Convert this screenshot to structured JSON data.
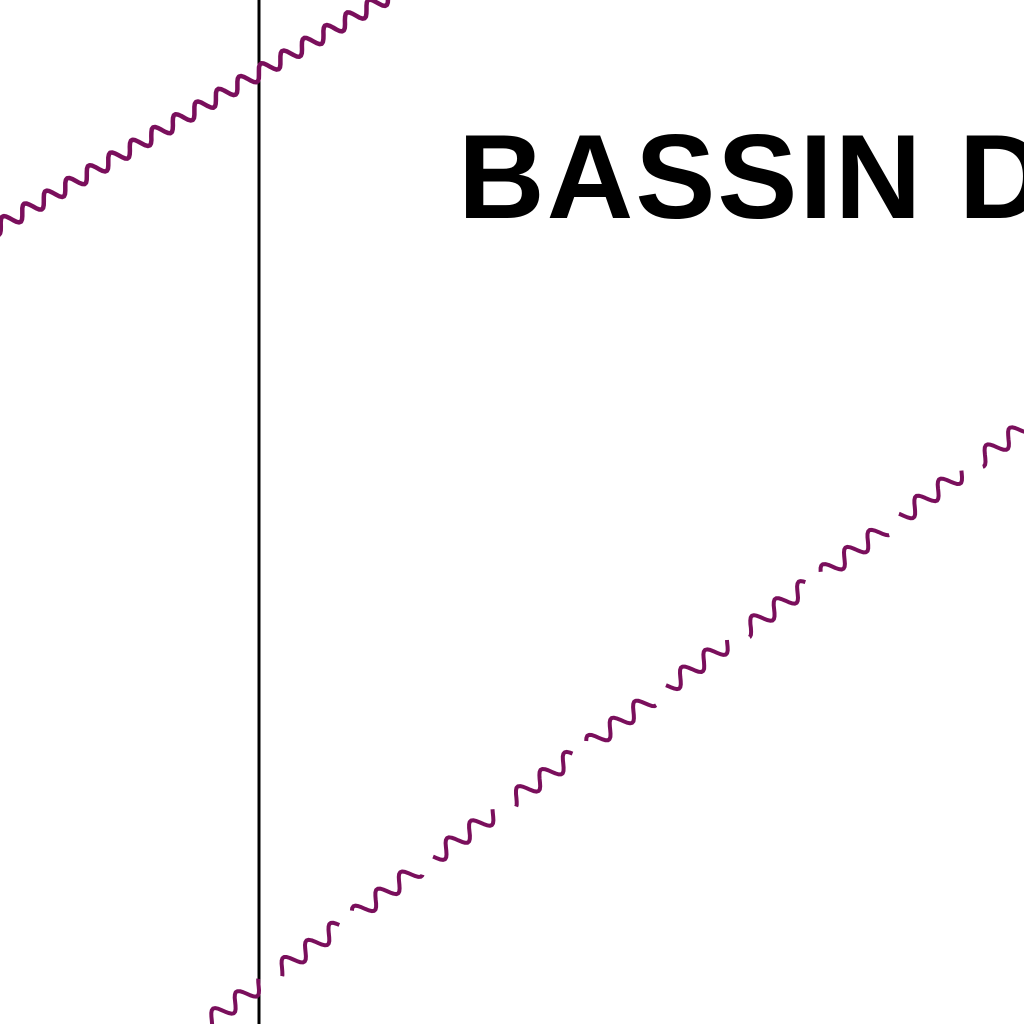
{
  "map": {
    "label": "BASSIN D",
    "colors": {
      "background": "#ffffff",
      "label": "#000000",
      "grid_line": "#000000",
      "boundary": "#7a0f5c"
    },
    "features": [
      {
        "name": "vertical-grid-line",
        "kind": "straight line"
      },
      {
        "name": "boundary-upper",
        "kind": "continuous wavy line"
      },
      {
        "name": "boundary-lower",
        "kind": "dashed wavy line"
      }
    ]
  }
}
